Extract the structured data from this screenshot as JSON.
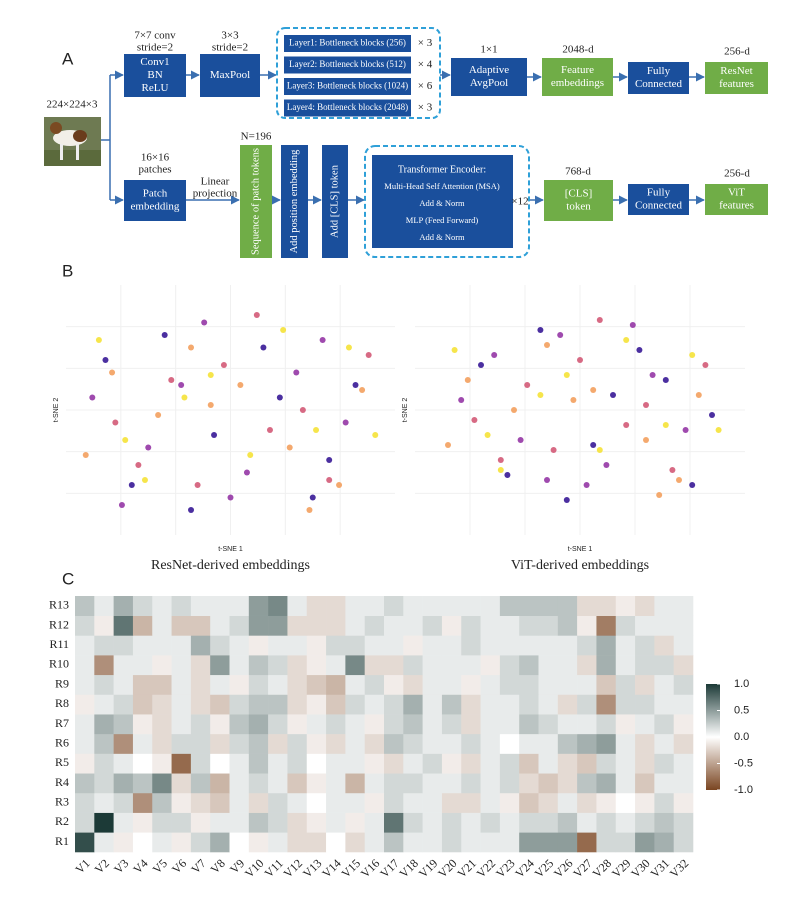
{
  "panel_labels": [
    "A",
    "B",
    "C"
  ],
  "diagram": {
    "boxes": [
      {
        "lines": [
          "Conv1",
          "BN",
          "ReLU"
        ]
      },
      {
        "lines": [
          "MaxPool"
        ]
      },
      {
        "lines": [
          "Adaptive",
          "AvgPool"
        ]
      },
      {
        "lines": [
          "Feature",
          "embeddings"
        ]
      },
      {
        "lines": [
          "Fully",
          "Connected"
        ]
      },
      {
        "lines": [
          "ResNet",
          "features"
        ]
      },
      {
        "lines": [
          "Patch",
          "embedding"
        ]
      },
      {
        "lines": [
          "Sequence of patch tokens"
        ]
      },
      {
        "lines": [
          "Add position embedding"
        ]
      },
      {
        "lines": [
          "Add [CLS] token"
        ]
      },
      {
        "lines": [
          "[CLS]",
          "token"
        ]
      },
      {
        "lines": [
          "Fully",
          "Connected"
        ]
      },
      {
        "lines": [
          "ViT",
          "features"
        ]
      }
    ],
    "notes": [
      {
        "lines": [
          "7×7 conv",
          "stride=2"
        ]
      },
      {
        "lines": [
          "3×3",
          "stride=2"
        ]
      },
      {
        "lines": [
          "1×1"
        ]
      },
      {
        "lines": [
          "2048-d"
        ]
      },
      {
        "lines": [
          "256-d"
        ]
      },
      {
        "lines": [
          "16×16",
          "patches"
        ]
      },
      {
        "lines": [
          "Linear",
          "projection"
        ]
      },
      {
        "lines": [
          "N=196"
        ]
      },
      {
        "lines": [
          "768-d"
        ]
      },
      {
        "lines": [
          "256-d"
        ]
      },
      {
        "lines": [
          "224×224×3"
        ]
      }
    ],
    "resnet_layers": [
      {
        "label": "Layer1: Bottleneck blocks (256)",
        "repeat": "× 3"
      },
      {
        "label": "Layer2: Bottleneck blocks (512)",
        "repeat": "× 4"
      },
      {
        "label": "Layer3: Bottleneck blocks (1024)",
        "repeat": "× 6"
      },
      {
        "label": "Layer4: Bottleneck blocks (2048)",
        "repeat": "× 3"
      }
    ],
    "encoder": {
      "lines": [
        "Transformer Encoder:",
        "Multi-Head Self Attention (MSA)",
        "Add & Norm",
        "MLP (Feed Forward)",
        "Add & Norm"
      ],
      "repeat": "×12"
    }
  },
  "chart_data": [
    {
      "type": "scatter",
      "title": "ResNet-derived embeddings",
      "xlabel": "t-SNE 1",
      "ylabel": "t-SNE 2",
      "xlim": [
        -50,
        50
      ],
      "ylim": [
        -50,
        50
      ],
      "series": [
        {
          "color": "#2b0b8f",
          "x": [
            -38,
            -20,
            -5,
            10,
            25,
            38,
            -30,
            15,
            -12,
            30
          ],
          "values": [
            20,
            30,
            -10,
            25,
            -35,
            10,
            -30,
            5,
            -40,
            -20
          ]
        },
        {
          "color": "#8e2aa0",
          "x": [
            -42,
            -25,
            -8,
            5,
            20,
            35,
            -15,
            0,
            28,
            -33
          ],
          "values": [
            5,
            -15,
            35,
            -25,
            15,
            -5,
            10,
            -35,
            28,
            -38
          ]
        },
        {
          "color": "#d0506f",
          "x": [
            -35,
            -18,
            -2,
            12,
            30,
            42,
            -28,
            8,
            22,
            -10
          ],
          "values": [
            -5,
            12,
            18,
            -8,
            -28,
            22,
            -22,
            38,
            0,
            -30
          ]
        },
        {
          "color": "#f29a55",
          "x": [
            -44,
            -22,
            -12,
            3,
            18,
            33,
            -36,
            24,
            40,
            -6
          ],
          "values": [
            -18,
            -2,
            25,
            10,
            -15,
            -30,
            15,
            -40,
            8,
            2
          ]
        },
        {
          "color": "#f4e02c",
          "x": [
            -40,
            -26,
            -14,
            6,
            16,
            36,
            44,
            -6,
            26,
            -32
          ],
          "values": [
            28,
            -28,
            5,
            -18,
            32,
            25,
            -10,
            14,
            -8,
            -12
          ]
        }
      ]
    },
    {
      "type": "scatter",
      "title": "ViT-derived embeddings",
      "xlabel": "t-SNE 1",
      "ylabel": "t-SNE 2",
      "xlim": [
        -50,
        50
      ],
      "ylim": [
        -50,
        50
      ],
      "series": [
        {
          "color": "#2b0b8f",
          "x": [
            -30,
            -12,
            4,
            18,
            34,
            -22,
            10,
            26,
            -4,
            40
          ],
          "values": [
            18,
            32,
            -14,
            24,
            -30,
            -26,
            6,
            12,
            -36,
            -2
          ]
        },
        {
          "color": "#8e2aa0",
          "x": [
            -36,
            -18,
            -6,
            8,
            22,
            32,
            -26,
            2,
            16,
            -10
          ],
          "values": [
            4,
            -12,
            30,
            -22,
            14,
            -8,
            22,
            -30,
            34,
            -28
          ]
        },
        {
          "color": "#d0506f",
          "x": [
            -32,
            -16,
            0,
            14,
            28,
            38,
            -24,
            6,
            20,
            -8
          ],
          "values": [
            -4,
            10,
            20,
            -6,
            -24,
            18,
            -20,
            36,
            2,
            -16
          ]
        },
        {
          "color": "#f29a55",
          "x": [
            -40,
            -20,
            -10,
            4,
            20,
            30,
            -34,
            24,
            36,
            -2
          ],
          "values": [
            -14,
            0,
            26,
            8,
            -12,
            -28,
            12,
            -34,
            6,
            4
          ]
        },
        {
          "color": "#f4e02c",
          "x": [
            -38,
            -24,
            -12,
            6,
            14,
            34,
            42,
            -4,
            26,
            -28
          ],
          "values": [
            24,
            -24,
            6,
            -16,
            28,
            22,
            -8,
            14,
            -6,
            -10
          ]
        }
      ]
    },
    {
      "type": "heatmap",
      "x": [
        "V1",
        "V2",
        "V3",
        "V4",
        "V5",
        "V6",
        "V7",
        "V8",
        "V9",
        "V10",
        "V11",
        "V12",
        "V13",
        "V14",
        "V15",
        "V16",
        "V17",
        "V18",
        "V19",
        "V20",
        "V21",
        "V22",
        "V23",
        "V24",
        "V25",
        "V26",
        "V27",
        "V28",
        "V29",
        "V30",
        "V31",
        "V32"
      ],
      "y": [
        "R1",
        "R2",
        "R3",
        "R4",
        "R5",
        "R6",
        "R7",
        "R8",
        "R9",
        "R10",
        "R11",
        "R12",
        "R13"
      ],
      "zlim": [
        -1,
        1
      ],
      "colorscale": [
        "#7a4521",
        "#ffffff",
        "#1c3a37"
      ],
      "zticks": [
        {
          "value": 1,
          "label": "1.0"
        },
        0.5,
        {
          "value": 0,
          "label": "0.0"
        },
        -0.5,
        {
          "value": -1,
          "label": "-1.0"
        }
      ],
      "values": [
        [
          0.9,
          0.1,
          -0.1,
          0,
          0.1,
          -0.1,
          0.2,
          0.4,
          0,
          -0.1,
          0.1,
          -0.2,
          -0.2,
          0,
          -0.2,
          0.1,
          0.3,
          0.1,
          0.1,
          0.2,
          0.1,
          0.1,
          0.1,
          0.5,
          0.5,
          0.5,
          -0.8,
          0.2,
          0.2,
          0.5,
          0.4,
          0.2
        ],
        [
          0.2,
          1.0,
          0.1,
          -0.1,
          0.2,
          0.2,
          -0.1,
          0.1,
          0.1,
          0.3,
          0.2,
          -0.2,
          -0.1,
          0.1,
          -0.1,
          0.1,
          0.7,
          0.2,
          0.1,
          0.2,
          0.1,
          0.2,
          0.1,
          0.2,
          0.2,
          0.3,
          0.1,
          0.2,
          0.1,
          0.2,
          0.3,
          0.2
        ],
        [
          0.2,
          0.1,
          0.2,
          -0.6,
          0.3,
          -0.1,
          -0.2,
          -0.3,
          0.1,
          -0.2,
          0.2,
          0.1,
          0,
          0.1,
          0.1,
          -0.1,
          0.2,
          0.1,
          0.1,
          -0.2,
          -0.2,
          0.1,
          -0.1,
          -0.3,
          -0.2,
          0.1,
          -0.2,
          -0.1,
          0,
          -0.1,
          0.2,
          -0.1
        ],
        [
          0.3,
          0.2,
          0.4,
          0.3,
          0.6,
          -0.2,
          0.3,
          -0.4,
          0.1,
          0.2,
          0.1,
          -0.3,
          -0.1,
          0.1,
          -0.4,
          0.1,
          0.2,
          0.2,
          0.1,
          0.1,
          0.2,
          0.1,
          0.2,
          -0.2,
          -0.3,
          -0.2,
          0.3,
          0.4,
          0.1,
          -0.3,
          0.1,
          0.1
        ],
        [
          -0.1,
          0.2,
          0.1,
          0,
          -0.1,
          -0.8,
          0.2,
          0,
          0.1,
          0.3,
          0.1,
          0.2,
          0,
          0.1,
          0.1,
          -0.1,
          -0.2,
          0.1,
          0.2,
          -0.1,
          -0.2,
          0.1,
          0.2,
          -0.3,
          0.1,
          -0.2,
          -0.3,
          0.2,
          0.1,
          -0.2,
          0.2,
          0.1
        ],
        [
          0.1,
          0.3,
          -0.6,
          0.1,
          -0.2,
          0.2,
          0.2,
          -0.2,
          0.2,
          0.3,
          -0.2,
          0.2,
          -0.1,
          -0.2,
          0.1,
          -0.2,
          0.3,
          0.2,
          0.1,
          0.1,
          0.2,
          0.1,
          0,
          0.1,
          0.1,
          0.3,
          0.4,
          0.5,
          0.1,
          -0.2,
          0.1,
          -0.2
        ],
        [
          0.1,
          0.4,
          0.3,
          -0.1,
          -0.2,
          0.1,
          0.2,
          -0.1,
          0.3,
          0.4,
          0.2,
          -0.1,
          0.1,
          0.2,
          0.1,
          -0.1,
          0.2,
          0.3,
          0.1,
          0.2,
          -0.2,
          0.1,
          0.1,
          0.3,
          0.2,
          0.1,
          0.1,
          0.2,
          -0.1,
          0.1,
          0.2,
          -0.1
        ],
        [
          -0.1,
          0.1,
          0.2,
          -0.3,
          -0.2,
          0.1,
          -0.2,
          -0.3,
          0.2,
          0.3,
          0.3,
          -0.2,
          -0.1,
          -0.3,
          0.2,
          0.1,
          0.2,
          0.4,
          0.1,
          0.3,
          -0.2,
          0.1,
          0.1,
          0.2,
          0.1,
          -0.2,
          0.2,
          -0.6,
          0.2,
          0.2,
          0.1,
          0.1
        ],
        [
          0.1,
          0.2,
          0.1,
          -0.3,
          -0.3,
          0.1,
          -0.2,
          0.1,
          -0.1,
          0.2,
          0.1,
          -0.2,
          -0.3,
          -0.4,
          0.1,
          0.2,
          -0.1,
          -0.2,
          0.1,
          0.1,
          -0.1,
          0.1,
          0.2,
          0.2,
          0.1,
          0.1,
          0.1,
          -0.3,
          0.2,
          -0.2,
          0.1,
          0.2
        ],
        [
          0.1,
          -0.6,
          0.1,
          0.1,
          -0.1,
          0.1,
          -0.2,
          0.5,
          0.1,
          0.3,
          0.2,
          -0.2,
          -0.1,
          0.1,
          0.6,
          -0.2,
          -0.2,
          0.2,
          0.1,
          0.1,
          0.1,
          -0.1,
          0.2,
          0.3,
          0.1,
          0.1,
          -0.2,
          0.4,
          0.1,
          0.2,
          0.2,
          -0.2
        ],
        [
          0.1,
          0.2,
          0.2,
          0.1,
          0.1,
          0.1,
          0.4,
          0.2,
          0.1,
          -0.1,
          0.1,
          0.1,
          -0.1,
          0.2,
          0.2,
          0.1,
          0.1,
          -0.1,
          0.1,
          0.1,
          0.2,
          0.1,
          0.1,
          0.1,
          0.1,
          0.1,
          0.2,
          0.4,
          0.1,
          0.2,
          -0.2,
          0.1
        ],
        [
          0.2,
          -0.1,
          0.7,
          -0.4,
          0.1,
          -0.3,
          -0.3,
          0.1,
          0.2,
          0.5,
          0.5,
          -0.2,
          -0.2,
          -0.2,
          0.1,
          0.2,
          0.1,
          0.1,
          0.2,
          -0.1,
          0.2,
          0.1,
          0.1,
          0.2,
          0.2,
          0.3,
          -0.1,
          -0.7,
          0.2,
          0.1,
          0.1,
          0.1
        ],
        [
          0.3,
          0.1,
          0.4,
          0.2,
          0.1,
          0.2,
          0.1,
          0.1,
          0.1,
          0.5,
          0.6,
          0.1,
          -0.2,
          -0.2,
          0.1,
          0.1,
          0.2,
          0.1,
          0.1,
          0.1,
          0.1,
          0.1,
          0.3,
          0.3,
          0.3,
          0.3,
          -0.2,
          -0.2,
          -0.1,
          -0.2,
          0.1,
          0.1
        ]
      ]
    }
  ]
}
